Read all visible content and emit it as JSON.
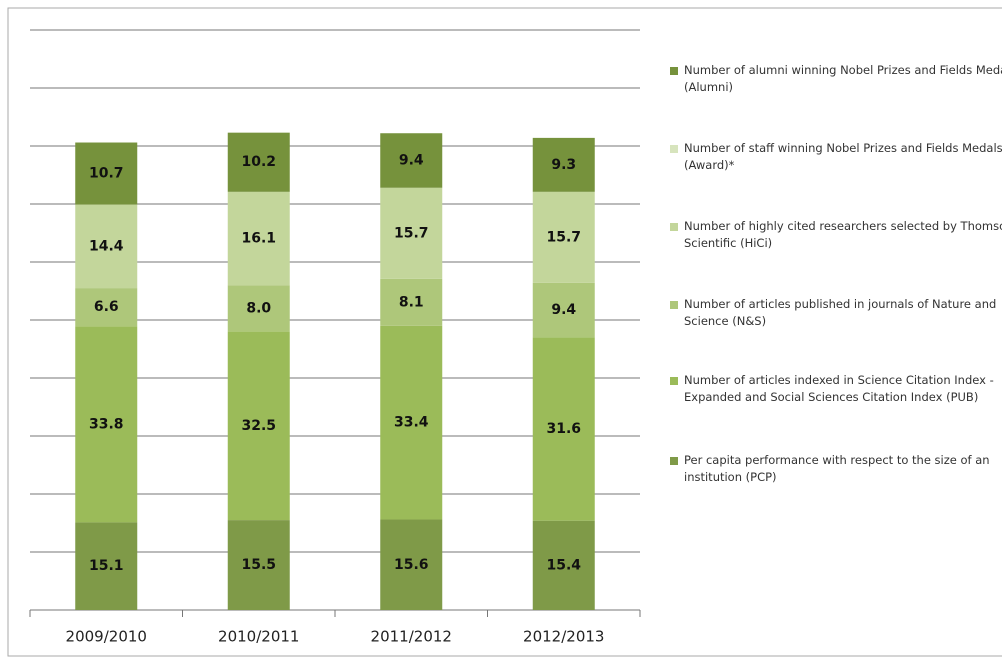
{
  "chart_data": {
    "type": "stacked_bar",
    "categories": [
      "2009/2010",
      "2010/2011",
      "2011/2012",
      "2012/2013"
    ],
    "series": [
      {
        "name": "Per capita performance with respect to the size of an institution (PCP)",
        "color": "#7f9a48",
        "values": [
          15.1,
          15.5,
          15.6,
          15.4
        ],
        "value_labels": [
          "15.1",
          "15.5",
          "15.6",
          "15.4"
        ]
      },
      {
        "name": "Number of articles indexed in Science Citation Index - Expanded and Social Sciences Citation Index (PUB)",
        "color": "#9bbb59",
        "values": [
          33.8,
          32.5,
          33.4,
          31.6
        ],
        "value_labels": [
          "33.8",
          "32.5",
          "33.4",
          "31.6"
        ]
      },
      {
        "name": "Number of articles published in journals of Nature and Science (N&S)",
        "color": "#aec77a",
        "values": [
          6.6,
          8.0,
          8.1,
          9.4
        ],
        "value_labels": [
          "6.6",
          "8.0",
          "8.1",
          "9.4"
        ]
      },
      {
        "name": "Number of highly cited researchers selected by Thomson Scientific (HiCi)",
        "color": "#c3d69b",
        "values": [
          14.4,
          16.1,
          15.7,
          15.7
        ],
        "value_labels": [
          "14.4",
          "16.1",
          "15.7",
          "15.7"
        ]
      },
      {
        "name": "Number of staff winning Nobel Prizes and Fields Medals (Award)*",
        "color": "#d7e4bd",
        "values": [
          null,
          null,
          null,
          null
        ],
        "value_labels": [
          null,
          null,
          null,
          null
        ]
      },
      {
        "name": "Number of alumni winning Nobel Prizes and Fields Medals (Alumni)",
        "color": "#76923c",
        "values": [
          10.7,
          10.2,
          9.4,
          9.3
        ],
        "value_labels": [
          "10.7",
          "10.2",
          "9.4",
          "9.3"
        ]
      }
    ],
    "ylim": [
      0,
      100
    ],
    "yticks": [
      0,
      10,
      20,
      30,
      40,
      50,
      60,
      70,
      80,
      90,
      100
    ],
    "grid": true,
    "legend": "right"
  }
}
